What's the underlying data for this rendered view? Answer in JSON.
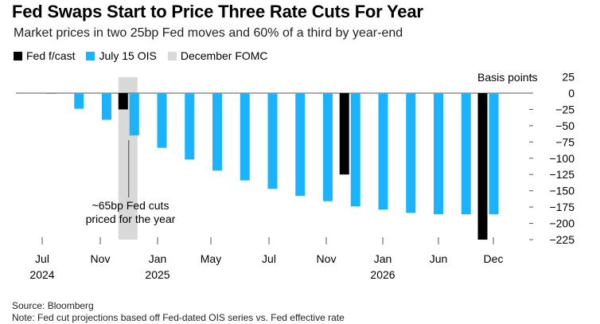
{
  "title": "Fed Swaps Start to Price Three Rate Cuts For Year",
  "subtitle": "Market prices in two 25bp Fed moves and 60% of a third by year-end",
  "legend": [
    {
      "label": "Fed f/cast",
      "color": "#000000"
    },
    {
      "label": "July 15 OIS",
      "color": "#1ab3ff"
    },
    {
      "label": "December FOMC",
      "color": "#d9d9d9"
    }
  ],
  "footer": {
    "source": "Source: Bloomberg",
    "note": "Note: Fed cut projections based off Fed-dated OIS series vs. Fed effective rate"
  },
  "chart_data": {
    "type": "bar",
    "y_axis_label": "Basis points",
    "ylim": [
      -225,
      25
    ],
    "yticks": [
      25,
      0,
      -25,
      -50,
      -75,
      -100,
      -125,
      -150,
      -175,
      -200,
      -225
    ],
    "x_ticks": [
      {
        "label": "Jul",
        "year": "2024"
      },
      {
        "label": "Nov",
        "year": ""
      },
      {
        "label": "Jan",
        "year": "2025"
      },
      {
        "label": "May",
        "year": ""
      },
      {
        "label": "Jul",
        "year": ""
      },
      {
        "label": "Nov",
        "year": ""
      },
      {
        "label": "Jan",
        "year": "2026"
      },
      {
        "label": "Jun",
        "year": ""
      },
      {
        "label": "Dec",
        "year": ""
      }
    ],
    "series": [
      {
        "name": "July 15 OIS",
        "color": "#1ab3ff",
        "values": [
          -1,
          -24,
          -41,
          -65,
          -84,
          -102,
          -119,
          -134,
          -147,
          -158,
          -166,
          -174,
          -179,
          -184,
          -186,
          -186,
          -186
        ]
      },
      {
        "name": "Fed f/cast",
        "color": "#000000",
        "points": [
          {
            "index": 3,
            "value": -25
          },
          {
            "index": 11,
            "value": -125
          },
          {
            "index": 16,
            "value": -225
          }
        ]
      }
    ],
    "highlight": {
      "label": "December FOMC",
      "index": 3,
      "color": "#d9d9d9"
    },
    "annotation": "~65bp Fed cuts priced for the year"
  }
}
